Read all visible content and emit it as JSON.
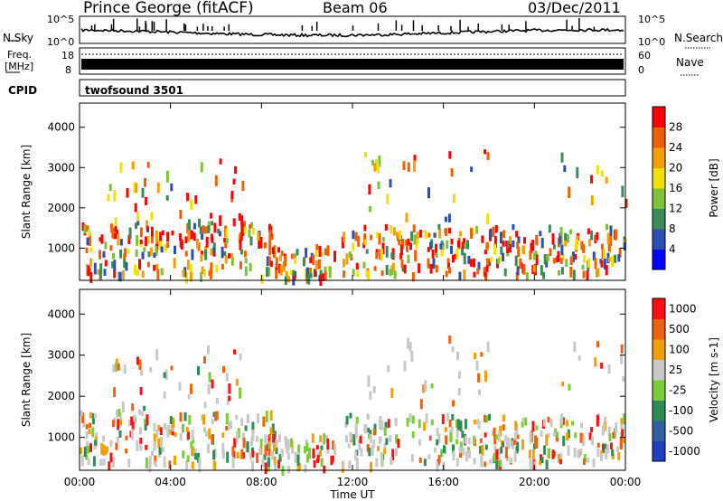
{
  "header": {
    "station": "Prince George (fitACF)",
    "beam": "Beam 06",
    "date": "03/Dec/2011"
  },
  "noise_panel": {
    "left_label": "N.Sky",
    "right_label": "N.Search",
    "ticks": [
      "10^5",
      "10^0"
    ]
  },
  "freq_panel": {
    "left_label_top": "Freq.",
    "left_label_bottom": "[MHz]",
    "left_ticks": [
      "18",
      "8"
    ],
    "right_label": "Nave",
    "right_ticks": [
      "60",
      "0"
    ]
  },
  "cpid": {
    "label": "CPID",
    "value": "twofsound 3501"
  },
  "chart_data": [
    {
      "type": "heatmap",
      "ylabel": "Slant Range [km]",
      "xlabel": "",
      "ylim": [
        200,
        4600
      ],
      "yticks": [
        1000,
        2000,
        3000,
        4000
      ],
      "x_tick_labels": [
        "00:00",
        "04:00",
        "08:00",
        "12:00",
        "16:00",
        "20:00",
        "00:00"
      ],
      "colorbar": {
        "label": "Power [dB]",
        "ticks": [
          4,
          8,
          12,
          16,
          20,
          24,
          28
        ],
        "colors": [
          "#0000ff",
          "#2f4fb0",
          "#3a8a5a",
          "#7ec23a",
          "#f2e200",
          "#f5a000",
          "#f06000",
          "#ff0000"
        ]
      }
    },
    {
      "type": "heatmap",
      "ylabel": "Slant Range [km]",
      "xlabel": "Time UT",
      "ylim": [
        200,
        4600
      ],
      "yticks": [
        1000,
        2000,
        3000,
        4000
      ],
      "x_tick_labels": [
        "00:00",
        "04:00",
        "08:00",
        "12:00",
        "16:00",
        "20:00",
        "00:00"
      ],
      "colorbar": {
        "label": "Velocity [m s-1]",
        "ticks": [
          "1000",
          "500",
          "100",
          "25",
          "-25",
          "-100",
          "-500",
          "-1000"
        ],
        "colors": [
          "#2040c0",
          "#3060a0",
          "#2e8b57",
          "#7ccd3a",
          "#c8c8c8",
          "#f0a000",
          "#f06010",
          "#ff1010"
        ]
      }
    }
  ]
}
